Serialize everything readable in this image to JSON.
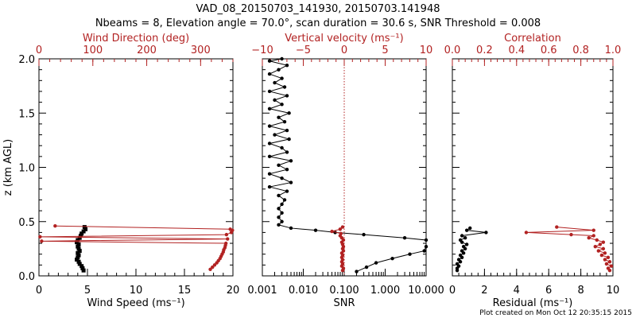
{
  "header": {
    "line1": "VAD_08_20150703_141930, 20150703.141948",
    "line2": "Nbeams = 8, Elevation angle = 70.0°, scan duration = 30.6 s, SNR Threshold = 0.008"
  },
  "footer": "Plot created on Mon Oct 12 20:35:15 2015",
  "colors": {
    "black": "#000000",
    "red": "#b22222"
  },
  "chart_data": [
    {
      "type": "scatter",
      "name": "wind",
      "ylabel": "z (km AGL)",
      "ylim": [
        0,
        2.0
      ],
      "yticks": [
        "0.0",
        "0.5",
        "1.0",
        "1.5",
        "2.0"
      ],
      "bottom_axis": {
        "label": "Wind Speed (ms⁻¹)",
        "range": [
          0,
          20
        ],
        "ticks": [
          "0",
          "5",
          "10",
          "15",
          "20"
        ]
      },
      "top_axis": {
        "label": "Wind Direction (deg)",
        "range": [
          0,
          360
        ],
        "ticks": [
          "0",
          "100",
          "200",
          "300"
        ]
      },
      "series": [
        {
          "name": "Wind Speed",
          "axis": "bottom",
          "color": "#000000",
          "marker": "square",
          "points": [
            [
              4.6,
              0.05
            ],
            [
              4.5,
              0.07
            ],
            [
              4.4,
              0.09
            ],
            [
              4.2,
              0.11
            ],
            [
              4.1,
              0.13
            ],
            [
              3.9,
              0.15
            ],
            [
              4.0,
              0.17
            ],
            [
              4.1,
              0.19
            ],
            [
              4.0,
              0.21
            ],
            [
              4.2,
              0.23
            ],
            [
              4.1,
              0.25
            ],
            [
              4.0,
              0.27
            ],
            [
              4.1,
              0.29
            ],
            [
              3.9,
              0.31
            ],
            [
              4.0,
              0.33
            ],
            [
              4.2,
              0.35
            ],
            [
              4.3,
              0.37
            ],
            [
              4.4,
              0.39
            ],
            [
              4.6,
              0.41
            ],
            [
              4.8,
              0.43
            ],
            [
              4.7,
              0.45
            ]
          ]
        },
        {
          "name": "Wind Direction",
          "axis": "top",
          "color": "#b22222",
          "marker": "circle",
          "points": [
            [
              318,
              0.06
            ],
            [
              322,
              0.08
            ],
            [
              326,
              0.1
            ],
            [
              330,
              0.12
            ],
            [
              333,
              0.14
            ],
            [
              336,
              0.16
            ],
            [
              338,
              0.18
            ],
            [
              340,
              0.2
            ],
            [
              342,
              0.22
            ],
            [
              343,
              0.24
            ],
            [
              345,
              0.26
            ],
            [
              346,
              0.28
            ],
            [
              347,
              0.3
            ],
            [
              5,
              0.32
            ],
            [
              350,
              0.34
            ],
            [
              2,
              0.36
            ],
            [
              348,
              0.38
            ],
            [
              357,
              0.4
            ],
            [
              359,
              0.42
            ],
            [
              355,
              0.43
            ],
            [
              30,
              0.46
            ]
          ]
        }
      ]
    },
    {
      "type": "line",
      "name": "snr",
      "bottom_axis": {
        "label": "SNR",
        "scale": "log",
        "range": [
          0.001,
          10
        ],
        "ticks": [
          "0.001",
          "0.010",
          "0.100",
          "1.000",
          "10.000"
        ]
      },
      "top_axis": {
        "label": "Vertical velocity (ms⁻¹)",
        "range": [
          -10,
          10
        ],
        "ticks": [
          "−10",
          "−5",
          "0",
          "5",
          "10"
        ]
      },
      "zero_line": 0,
      "series": [
        {
          "name": "SNR",
          "axis": "bottom",
          "color": "#000000",
          "marker": "circle",
          "points": [
            [
              0.2,
              0.04
            ],
            [
              0.35,
              0.08
            ],
            [
              0.6,
              0.12
            ],
            [
              1.5,
              0.16
            ],
            [
              4.0,
              0.2
            ],
            [
              9.0,
              0.23
            ],
            [
              10.0,
              0.27
            ],
            [
              10.0,
              0.33
            ],
            [
              3.0,
              0.35
            ],
            [
              0.3,
              0.38
            ],
            [
              0.06,
              0.4
            ],
            [
              0.02,
              0.42
            ],
            [
              0.005,
              0.44
            ],
            [
              0.0025,
              0.47
            ],
            [
              0.003,
              0.5
            ],
            [
              0.0025,
              0.54
            ],
            [
              0.003,
              0.58
            ],
            [
              0.0025,
              0.62
            ],
            [
              0.003,
              0.66
            ],
            [
              0.0035,
              0.7
            ],
            [
              0.0025,
              0.74
            ],
            [
              0.004,
              0.78
            ],
            [
              0.0015,
              0.82
            ],
            [
              0.005,
              0.86
            ],
            [
              0.003,
              0.9
            ],
            [
              0.0015,
              0.94
            ],
            [
              0.004,
              0.98
            ],
            [
              0.0025,
              1.02
            ],
            [
              0.005,
              1.06
            ],
            [
              0.0015,
              1.1
            ],
            [
              0.004,
              1.14
            ],
            [
              0.003,
              1.18
            ],
            [
              0.0015,
              1.22
            ],
            [
              0.0045,
              1.26
            ],
            [
              0.002,
              1.3
            ],
            [
              0.004,
              1.34
            ],
            [
              0.0015,
              1.38
            ],
            [
              0.0035,
              1.42
            ],
            [
              0.0025,
              1.46
            ],
            [
              0.0045,
              1.5
            ],
            [
              0.0015,
              1.54
            ],
            [
              0.003,
              1.58
            ],
            [
              0.002,
              1.62
            ],
            [
              0.004,
              1.66
            ],
            [
              0.0015,
              1.7
            ],
            [
              0.0035,
              1.74
            ],
            [
              0.002,
              1.78
            ],
            [
              0.003,
              1.82
            ],
            [
              0.0015,
              1.86
            ],
            [
              0.0025,
              1.9
            ],
            [
              0.004,
              1.94
            ],
            [
              0.0015,
              1.98
            ],
            [
              0.003,
              2.0
            ]
          ]
        },
        {
          "name": "Vertical velocity",
          "axis": "top",
          "color": "#b22222",
          "marker": "circle",
          "points": [
            [
              -0.2,
              0.05
            ],
            [
              -0.1,
              0.07
            ],
            [
              -0.3,
              0.09
            ],
            [
              -0.2,
              0.11
            ],
            [
              -0.3,
              0.13
            ],
            [
              -0.2,
              0.15
            ],
            [
              -0.3,
              0.17
            ],
            [
              -0.2,
              0.19
            ],
            [
              -0.3,
              0.21
            ],
            [
              -0.1,
              0.23
            ],
            [
              -0.2,
              0.25
            ],
            [
              -0.1,
              0.27
            ],
            [
              -0.2,
              0.29
            ],
            [
              -0.3,
              0.31
            ],
            [
              -0.1,
              0.33
            ],
            [
              -0.3,
              0.35
            ],
            [
              -0.5,
              0.37
            ],
            [
              -0.4,
              0.39
            ],
            [
              -1.5,
              0.41
            ],
            [
              -0.5,
              0.43
            ],
            [
              -0.2,
              0.45
            ]
          ]
        }
      ]
    },
    {
      "type": "scatter",
      "name": "residual",
      "bottom_axis": {
        "label": "Residual (ms⁻¹)",
        "range": [
          0,
          10
        ],
        "ticks": [
          "0",
          "2",
          "4",
          "6",
          "8",
          "10"
        ]
      },
      "top_axis": {
        "label": "Correlation",
        "range": [
          0,
          1
        ],
        "ticks": [
          "0.0",
          "0.2",
          "0.4",
          "0.6",
          "0.8",
          "1.0"
        ]
      },
      "series": [
        {
          "name": "Residual",
          "axis": "bottom",
          "color": "#000000",
          "marker": "circle",
          "points": [
            [
              0.3,
              0.05
            ],
            [
              0.3,
              0.07
            ],
            [
              0.4,
              0.09
            ],
            [
              0.3,
              0.11
            ],
            [
              0.5,
              0.13
            ],
            [
              0.4,
              0.15
            ],
            [
              0.6,
              0.17
            ],
            [
              0.5,
              0.19
            ],
            [
              0.7,
              0.21
            ],
            [
              0.6,
              0.23
            ],
            [
              0.8,
              0.25
            ],
            [
              0.7,
              0.27
            ],
            [
              0.9,
              0.29
            ],
            [
              0.6,
              0.31
            ],
            [
              0.5,
              0.33
            ],
            [
              0.8,
              0.35
            ],
            [
              0.6,
              0.37
            ],
            [
              2.1,
              0.4
            ],
            [
              0.9,
              0.42
            ],
            [
              1.1,
              0.44
            ]
          ]
        },
        {
          "name": "Correlation",
          "axis": "top",
          "color": "#b22222",
          "marker": "circle",
          "points": [
            [
              0.98,
              0.05
            ],
            [
              0.97,
              0.07
            ],
            [
              0.99,
              0.09
            ],
            [
              0.96,
              0.11
            ],
            [
              0.98,
              0.13
            ],
            [
              0.95,
              0.15
            ],
            [
              0.97,
              0.17
            ],
            [
              0.93,
              0.19
            ],
            [
              0.95,
              0.21
            ],
            [
              0.91,
              0.23
            ],
            [
              0.94,
              0.25
            ],
            [
              0.89,
              0.27
            ],
            [
              0.92,
              0.29
            ],
            [
              0.94,
              0.31
            ],
            [
              0.9,
              0.33
            ],
            [
              0.85,
              0.35
            ],
            [
              0.88,
              0.37
            ],
            [
              0.74,
              0.38
            ],
            [
              0.46,
              0.4
            ],
            [
              0.88,
              0.42
            ],
            [
              0.65,
              0.45
            ]
          ]
        }
      ]
    }
  ]
}
